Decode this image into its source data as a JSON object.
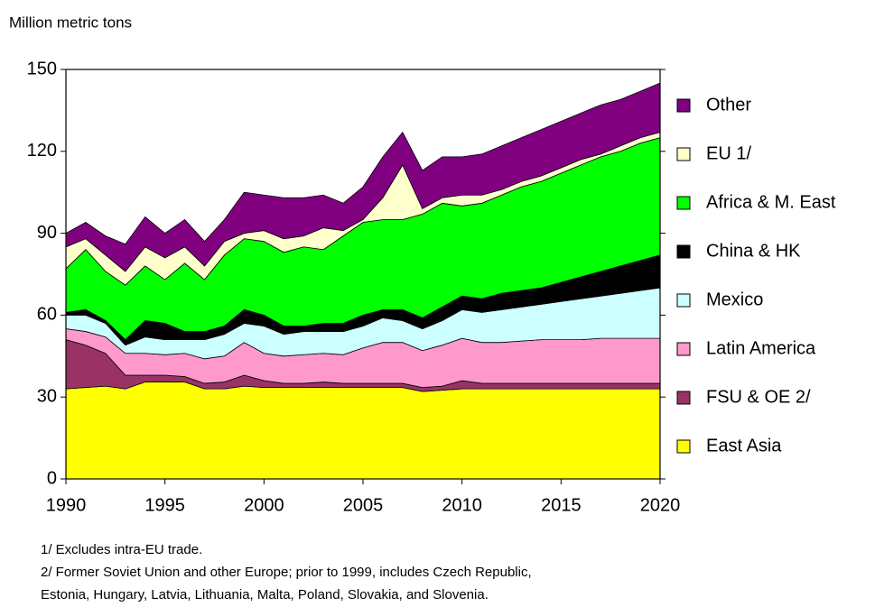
{
  "chart_data": {
    "type": "stacked-area",
    "y_axis_label": "Million metric tons",
    "x": [
      1990,
      1991,
      1992,
      1993,
      1994,
      1995,
      1996,
      1997,
      1998,
      1999,
      2000,
      2001,
      2002,
      2003,
      2004,
      2005,
      2006,
      2007,
      2008,
      2009,
      2010,
      2011,
      2012,
      2013,
      2014,
      2015,
      2016,
      2017,
      2018,
      2019,
      2020
    ],
    "xlim": [
      1990,
      2020
    ],
    "xticks": [
      1990,
      1995,
      2000,
      2005,
      2010,
      2015,
      2020
    ],
    "ylim": [
      0,
      150
    ],
    "yticks": [
      0,
      30,
      60,
      90,
      120,
      150
    ],
    "legend": "right",
    "series": [
      {
        "name": "East Asia",
        "color": "#ffff00",
        "values": [
          33,
          33.5,
          34,
          33,
          35.5,
          35.5,
          35.5,
          33,
          33,
          34,
          33.5,
          33.5,
          33.5,
          33.5,
          33.5,
          33.5,
          33.5,
          33.5,
          32,
          32.5,
          33,
          33,
          33,
          33,
          33,
          33,
          33,
          33,
          33,
          33,
          33
        ]
      },
      {
        "name": "FSU & OE 2/",
        "color": "#993366",
        "values": [
          18,
          15.5,
          12,
          5,
          2.5,
          2.5,
          2,
          2,
          2.5,
          4,
          2.5,
          1.5,
          1.5,
          2,
          1.5,
          1.5,
          1.5,
          1.5,
          1.5,
          1.5,
          3,
          2,
          2,
          2,
          2,
          2,
          2,
          2,
          2,
          2,
          2
        ]
      },
      {
        "name": "Latin America",
        "color": "#ff99cc",
        "values": [
          4,
          5,
          6,
          8,
          8,
          7.5,
          8.5,
          9,
          9.5,
          12,
          10,
          10,
          10.5,
          10.5,
          10.5,
          13,
          15,
          15,
          13.5,
          15,
          15.5,
          15,
          15,
          15.5,
          16,
          16,
          16,
          16.5,
          16.5,
          16.5,
          16.5
        ]
      },
      {
        "name": "Mexico",
        "color": "#ccffff",
        "values": [
          5,
          6,
          5,
          3,
          6,
          5.5,
          5,
          7,
          8,
          7,
          10,
          8,
          8.5,
          8,
          8.5,
          8,
          9,
          8,
          8,
          9,
          10.5,
          11,
          12,
          12.5,
          13,
          14,
          15,
          15.5,
          16.5,
          17.5,
          18.5
        ]
      },
      {
        "name": "China & HK",
        "color": "#000000",
        "values": [
          1,
          2,
          1,
          2,
          6,
          6,
          3,
          3,
          3,
          5,
          4,
          3,
          2,
          3,
          3,
          4,
          3,
          4,
          4,
          5,
          5,
          5,
          6,
          6,
          6,
          7,
          8,
          9,
          10,
          11,
          12
        ]
      },
      {
        "name": "Africa & M. East",
        "color": "#00ff00",
        "values": [
          16,
          22,
          18,
          20,
          20,
          16,
          25,
          19,
          26,
          26,
          27,
          27,
          29,
          27,
          32,
          34,
          33,
          33,
          38,
          38,
          33,
          35,
          36,
          38,
          39,
          40,
          41,
          42,
          42,
          43,
          43
        ]
      },
      {
        "name": "EU 1/",
        "color": "#ffffcc",
        "values": [
          8,
          4,
          6,
          5,
          7,
          8,
          6,
          5,
          5,
          2,
          4,
          5,
          4,
          8,
          2,
          1,
          8,
          20,
          2,
          2,
          4,
          3,
          2,
          2,
          2,
          2,
          2,
          1,
          2,
          2,
          2
        ]
      },
      {
        "name": "Other",
        "color": "#800080",
        "values": [
          5,
          6,
          7,
          10,
          11,
          9,
          10,
          9,
          8,
          15,
          13,
          15,
          14,
          12,
          10,
          12,
          15,
          12,
          14,
          15,
          14,
          15,
          16,
          16,
          17,
          17,
          17,
          18,
          17,
          17,
          18
        ]
      }
    ],
    "notes": [
      "1/ Excludes intra-EU trade.",
      "2/ Former Soviet Union and other Europe; prior to 1999, includes Czech Republic,",
      "Estonia, Hungary, Latvia, Lithuania, Malta, Poland, Slovakia, and Slovenia."
    ]
  }
}
